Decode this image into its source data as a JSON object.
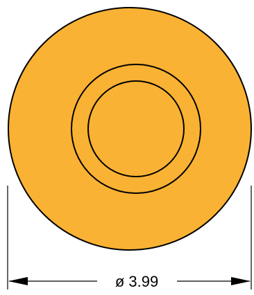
{
  "drawing": {
    "dimension_label": "ø 3.99",
    "colors": {
      "fill": "#f9b233",
      "stroke": "#000000",
      "background": "#ffffff"
    }
  }
}
